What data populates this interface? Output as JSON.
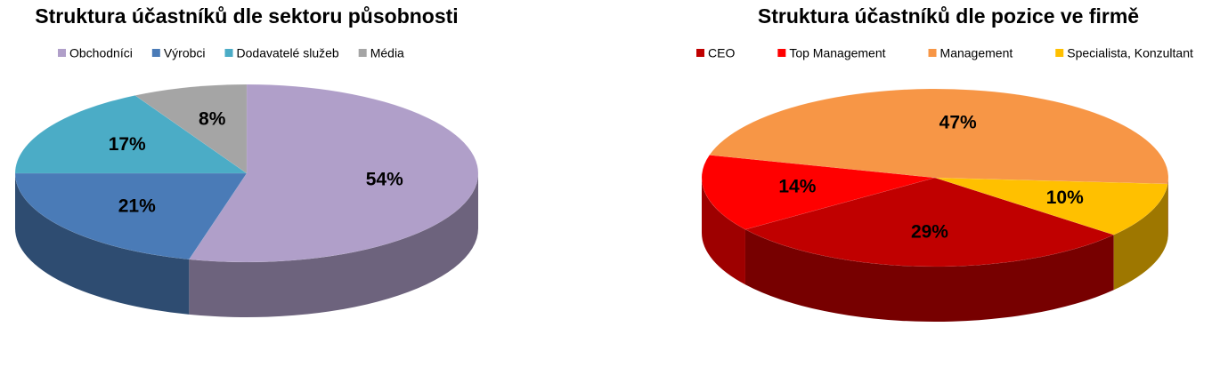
{
  "chart_data": [
    {
      "type": "pie3d",
      "title": "Struktura účastníků dle sektoru působnosti",
      "categories": [
        "Obchodníci",
        "Výrobci",
        "Dodavatelé služeb",
        "Média"
      ],
      "values": [
        54,
        21,
        17,
        8
      ],
      "value_labels": [
        "54%",
        "21%",
        "17%",
        "8%"
      ],
      "colors": [
        "#b09fc9",
        "#4a7bb7",
        "#4bacc6",
        "#a5a5a5"
      ],
      "legend": "top"
    },
    {
      "type": "pie3d",
      "title": "Struktura účastníků dle pozice ve firmě",
      "categories": [
        "CEO",
        "Top Management",
        "Management",
        "Specialista, Konzultant"
      ],
      "values": [
        29,
        14,
        47,
        10
      ],
      "value_labels": [
        "29%",
        "14%",
        "47%",
        "10%"
      ],
      "colors": [
        "#c00000",
        "#ff0000",
        "#f79646",
        "#ffc000"
      ],
      "legend": "top"
    }
  ]
}
